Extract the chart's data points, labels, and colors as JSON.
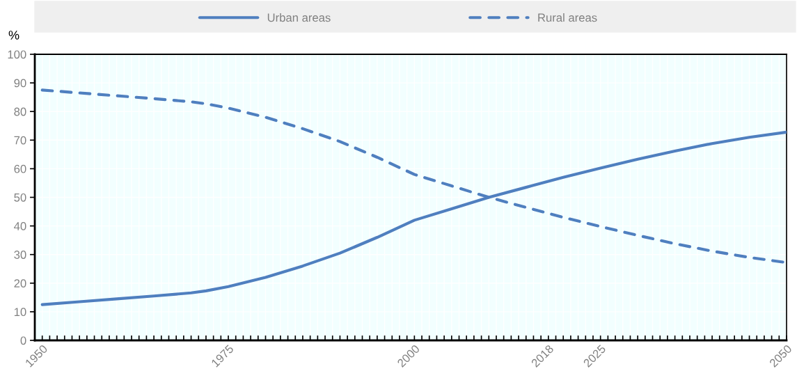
{
  "chart_data": {
    "type": "line",
    "ylabel": "%",
    "x": [
      1950,
      1955,
      1960,
      1965,
      1970,
      1972,
      1975,
      1980,
      1985,
      1990,
      1995,
      2000,
      2005,
      2010,
      2015,
      2020,
      2025,
      2030,
      2035,
      2040,
      2045,
      2050
    ],
    "series": [
      {
        "name": "Urban areas",
        "color": "#4f7fbf",
        "line_style": "solid",
        "values": [
          12.5,
          13.5,
          14.5,
          15.5,
          16.6,
          17.3,
          18.8,
          22,
          26,
          30.5,
          36,
          42,
          46,
          50,
          53.5,
          57,
          60.2,
          63.3,
          66.2,
          68.8,
          71,
          72.8
        ]
      },
      {
        "name": "Rural areas",
        "color": "#4f7fbf",
        "line_style": "dashed",
        "values": [
          87.5,
          86.5,
          85.5,
          84.5,
          83.4,
          82.7,
          81.2,
          78,
          74,
          69.5,
          64,
          58,
          54,
          50,
          46.5,
          43,
          39.8,
          36.7,
          33.8,
          31.2,
          29,
          27.2
        ]
      }
    ],
    "xlim": [
      1949,
      2050
    ],
    "ylim": [
      0,
      100
    ],
    "yticks": [
      0,
      10,
      20,
      30,
      40,
      50,
      60,
      70,
      80,
      90,
      100
    ],
    "xticks": [
      1950,
      {
        "value": 1951,
        "label": null
      },
      {
        "value": 1952,
        "label": null
      },
      {
        "value": 1953,
        "label": null
      },
      {
        "value": 1954,
        "label": null
      },
      {
        "value": 1955,
        "label": null
      },
      {
        "value": 1956,
        "label": null
      },
      {
        "value": 1957,
        "label": null
      },
      {
        "value": 1958,
        "label": null
      },
      {
        "value": 1959,
        "label": null
      },
      {
        "value": 1960,
        "label": null
      },
      {
        "value": 1961,
        "label": null
      },
      {
        "value": 1962,
        "label": null
      },
      {
        "value": 1963,
        "label": null
      },
      {
        "value": 1964,
        "label": null
      },
      {
        "value": 1965,
        "label": null
      },
      {
        "value": 1966,
        "label": null
      },
      {
        "value": 1967,
        "label": null
      },
      {
        "value": 1968,
        "label": null
      },
      {
        "value": 1969,
        "label": null
      },
      {
        "value": 1970,
        "label": null
      },
      {
        "value": 1971,
        "label": null
      },
      {
        "value": 1972,
        "label": null
      },
      {
        "value": 1973,
        "label": null
      },
      {
        "value": 1974,
        "label": null
      },
      1975,
      {
        "value": 1976,
        "label": null
      },
      {
        "value": 1977,
        "label": null
      },
      {
        "value": 1978,
        "label": null
      },
      {
        "value": 1979,
        "label": null
      },
      {
        "value": 1980,
        "label": null
      },
      {
        "value": 1981,
        "label": null
      },
      {
        "value": 1982,
        "label": null
      },
      {
        "value": 1983,
        "label": null
      },
      {
        "value": 1984,
        "label": null
      },
      {
        "value": 1985,
        "label": null
      },
      {
        "value": 1986,
        "label": null
      },
      {
        "value": 1987,
        "label": null
      },
      {
        "value": 1988,
        "label": null
      },
      {
        "value": 1989,
        "label": null
      },
      {
        "value": 1990,
        "label": null
      },
      {
        "value": 1991,
        "label": null
      },
      {
        "value": 1992,
        "label": null
      },
      {
        "value": 1993,
        "label": null
      },
      {
        "value": 1994,
        "label": null
      },
      {
        "value": 1995,
        "label": null
      },
      {
        "value": 1996,
        "label": null
      },
      {
        "value": 1997,
        "label": null
      },
      {
        "value": 1998,
        "label": null
      },
      {
        "value": 1999,
        "label": null
      },
      2000,
      {
        "value": 2001,
        "label": null
      },
      {
        "value": 2002,
        "label": null
      },
      {
        "value": 2003,
        "label": null
      },
      {
        "value": 2004,
        "label": null
      },
      {
        "value": 2005,
        "label": null
      },
      {
        "value": 2006,
        "label": null
      },
      {
        "value": 2007,
        "label": null
      },
      {
        "value": 2008,
        "label": null
      },
      {
        "value": 2009,
        "label": null
      },
      {
        "value": 2010,
        "label": null
      },
      {
        "value": 2011,
        "label": null
      },
      {
        "value": 2012,
        "label": null
      },
      {
        "value": 2013,
        "label": null
      },
      {
        "value": 2014,
        "label": null
      },
      {
        "value": 2015,
        "label": null
      },
      {
        "value": 2016,
        "label": null
      },
      {
        "value": 2017,
        "label": null
      },
      2018,
      {
        "value": 2019,
        "label": null
      },
      {
        "value": 2020,
        "label": null
      },
      {
        "value": 2021,
        "label": null
      },
      {
        "value": 2022,
        "label": null
      },
      {
        "value": 2023,
        "label": null
      },
      {
        "value": 2024,
        "label": null
      },
      2025,
      {
        "value": 2026,
        "label": null
      },
      {
        "value": 2027,
        "label": null
      },
      {
        "value": 2028,
        "label": null
      },
      {
        "value": 2029,
        "label": null
      },
      {
        "value": 2030,
        "label": null
      },
      {
        "value": 2031,
        "label": null
      },
      {
        "value": 2032,
        "label": null
      },
      {
        "value": 2033,
        "label": null
      },
      {
        "value": 2034,
        "label": null
      },
      {
        "value": 2035,
        "label": null
      },
      {
        "value": 2036,
        "label": null
      },
      {
        "value": 2037,
        "label": null
      },
      {
        "value": 2038,
        "label": null
      },
      {
        "value": 2039,
        "label": null
      },
      {
        "value": 2040,
        "label": null
      },
      {
        "value": 2041,
        "label": null
      },
      {
        "value": 2042,
        "label": null
      },
      {
        "value": 2043,
        "label": null
      },
      {
        "value": 2044,
        "label": null
      },
      {
        "value": 2045,
        "label": null
      },
      {
        "value": 2046,
        "label": null
      },
      {
        "value": 2047,
        "label": null
      },
      {
        "value": 2048,
        "label": null
      },
      {
        "value": 2049,
        "label": null
      },
      2050
    ],
    "grid": true,
    "legend": "top"
  }
}
